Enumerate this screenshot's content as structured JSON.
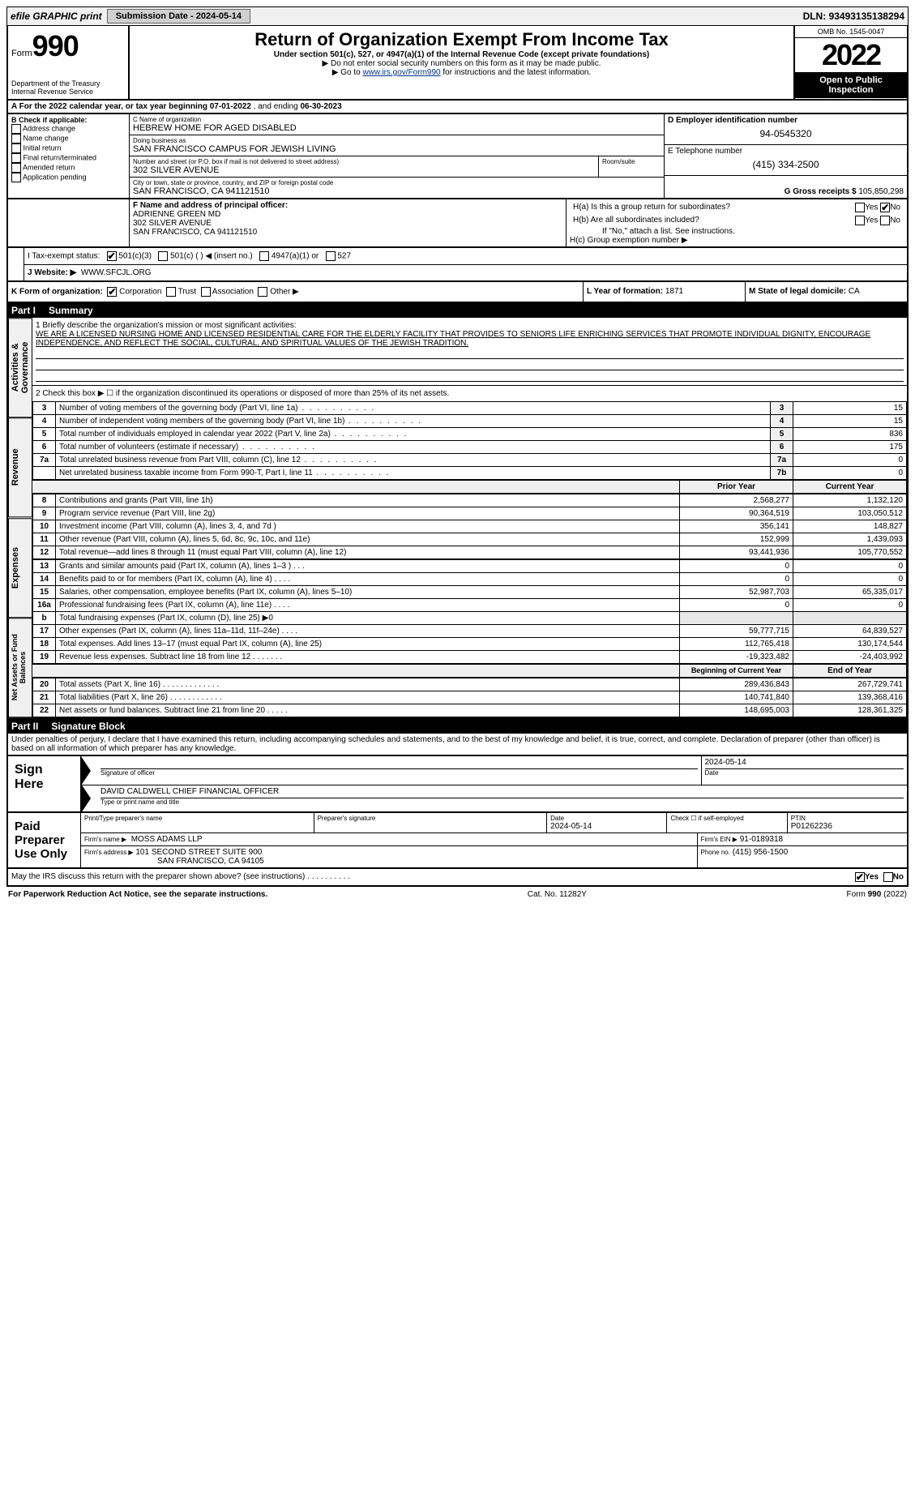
{
  "efile": {
    "label": "efile GRAPHIC print",
    "submission_label": "Submission Date - ",
    "submission_date": "2024-05-14",
    "dln_label": "DLN: ",
    "dln": "93493135138294"
  },
  "header": {
    "form_word": "Form",
    "form_num": "990",
    "title": "Return of Organization Exempt From Income Tax",
    "subtitle": "Under section 501(c), 527, or 4947(a)(1) of the Internal Revenue Code (except private foundations)",
    "note1": "▶ Do not enter social security numbers on this form as it may be made public.",
    "note2_pre": "▶ Go to ",
    "note2_link": "www.irs.gov/Form990",
    "note2_post": " for instructions and the latest information.",
    "dept": "Department of the Treasury\nInternal Revenue Service",
    "omb": "OMB No. 1545-0047",
    "year": "2022",
    "open": "Open to Public Inspection"
  },
  "row_a": {
    "text_pre": "A For the 2022 calendar year, or tax year beginning ",
    "begin": "07-01-2022",
    "mid": " , and ending ",
    "end": "06-30-2023"
  },
  "col_b": {
    "hdr": "B Check if applicable:",
    "items": [
      "Address change",
      "Name change",
      "Initial return",
      "Final return/terminated",
      "Amended return",
      "Application pending"
    ]
  },
  "c": {
    "lbl": "C Name of organization",
    "name": "HEBREW HOME FOR AGED DISABLED",
    "dba_lbl": "Doing business as",
    "dba": "SAN FRANCISCO CAMPUS FOR JEWISH LIVING",
    "addr_lbl": "Number and street (or P.O. box if mail is not delivered to street address)",
    "room_lbl": "Room/suite",
    "addr": "302 SILVER AVENUE",
    "city_lbl": "City or town, state or province, country, and ZIP or foreign postal code",
    "city": "SAN FRANCISCO, CA  941121510"
  },
  "d": {
    "lbl": "D Employer identification number",
    "val": "94-0545320"
  },
  "e": {
    "lbl": "E Telephone number",
    "val": "(415) 334-2500"
  },
  "g": {
    "lbl": "G Gross receipts $",
    "val": "105,850,298"
  },
  "f": {
    "lbl": "F Name and address of principal officer:",
    "name": "ADRIENNE GREEN MD",
    "addr1": "302 SILVER AVENUE",
    "addr2": "SAN FRANCISCO, CA  941121510"
  },
  "h": {
    "a_lbl": "H(a)  Is this a group return for subordinates?",
    "a_yes": "Yes",
    "a_no": "No",
    "b_lbl": "H(b)  Are all subordinates included?",
    "b_yes": "Yes",
    "b_no": "No",
    "b_note": "If \"No,\" attach a list. See instructions.",
    "c_lbl": "H(c)  Group exemption number ▶"
  },
  "i": {
    "lbl": "I  Tax-exempt status:",
    "opts": [
      "501(c)(3)",
      "501(c) (  ) ◀ (insert no.)",
      "4947(a)(1) or",
      "527"
    ]
  },
  "j": {
    "lbl": "J  Website: ▶",
    "val": "WWW.SFCJL.ORG"
  },
  "k": {
    "lbl": "K Form of organization:",
    "opts": [
      "Corporation",
      "Trust",
      "Association",
      "Other ▶"
    ]
  },
  "l": {
    "lbl": "L Year of formation:",
    "val": "1871"
  },
  "m": {
    "lbl": "M State of legal domicile:",
    "val": "CA"
  },
  "part1": {
    "num": "Part I",
    "title": "Summary"
  },
  "summary": {
    "line1_lbl": "1  Briefly describe the organization's mission or most significant activities:",
    "line1_val": "WE ARE A LICENSED NURSING HOME AND LICENSED RESIDENTIAL CARE FOR THE ELDERLY FACILITY THAT PROVIDES TO SENIORS LIFE ENRICHING SERVICES THAT PROMOTE INDIVIDUAL DIGNITY, ENCOURAGE INDEPENDENCE, AND REFLECT THE SOCIAL, CULTURAL, AND SPIRITUAL VALUES OF THE JEWISH TRADITION.",
    "line2": "2  Check this box ▶ ☐ if the organization discontinued its operations or disposed of more than 25% of its net assets.",
    "tab_governance": "Activities & Governance",
    "tab_revenue": "Revenue",
    "tab_expenses": "Expenses",
    "tab_netassets": "Net Assets or Fund Balances",
    "rows_single": [
      {
        "n": "3",
        "t": "Number of voting members of the governing body (Part VI, line 1a)",
        "box": "3",
        "v": "15"
      },
      {
        "n": "4",
        "t": "Number of independent voting members of the governing body (Part VI, line 1b)",
        "box": "4",
        "v": "15"
      },
      {
        "n": "5",
        "t": "Total number of individuals employed in calendar year 2022 (Part V, line 2a)",
        "box": "5",
        "v": "836"
      },
      {
        "n": "6",
        "t": "Total number of volunteers (estimate if necessary)",
        "box": "6",
        "v": "175"
      },
      {
        "n": "7a",
        "t": "Total unrelated business revenue from Part VIII, column (C), line 12",
        "box": "7a",
        "v": "0"
      },
      {
        "n": "",
        "t": "Net unrelated business taxable income from Form 990-T, Part I, line 11",
        "box": "7b",
        "v": "0"
      }
    ],
    "col_hdr_prior": "Prior Year",
    "col_hdr_current": "Current Year",
    "rows_rev": [
      {
        "n": "8",
        "t": "Contributions and grants (Part VIII, line 1h)",
        "p": "2,568,277",
        "c": "1,132,120"
      },
      {
        "n": "9",
        "t": "Program service revenue (Part VIII, line 2g)",
        "p": "90,364,519",
        "c": "103,050,512"
      },
      {
        "n": "10",
        "t": "Investment income (Part VIII, column (A), lines 3, 4, and 7d )",
        "p": "356,141",
        "c": "148,827"
      },
      {
        "n": "11",
        "t": "Other revenue (Part VIII, column (A), lines 5, 6d, 8c, 9c, 10c, and 11e)",
        "p": "152,999",
        "c": "1,439,093"
      },
      {
        "n": "12",
        "t": "Total revenue—add lines 8 through 11 (must equal Part VIII, column (A), line 12)",
        "p": "93,441,936",
        "c": "105,770,552"
      }
    ],
    "rows_exp": [
      {
        "n": "13",
        "t": "Grants and similar amounts paid (Part IX, column (A), lines 1–3 )   .   .   .",
        "p": "0",
        "c": "0"
      },
      {
        "n": "14",
        "t": "Benefits paid to or for members (Part IX, column (A), line 4)   .   .   .   .",
        "p": "0",
        "c": "0"
      },
      {
        "n": "15",
        "t": "Salaries, other compensation, employee benefits (Part IX, column (A), lines 5–10)",
        "p": "52,987,703",
        "c": "65,335,017"
      },
      {
        "n": "16a",
        "t": "Professional fundraising fees (Part IX, column (A), line 11e)   .   .   .   .",
        "p": "0",
        "c": "0"
      },
      {
        "n": "b",
        "t": "Total fundraising expenses (Part IX, column (D), line 25) ▶0",
        "p": "",
        "c": ""
      },
      {
        "n": "17",
        "t": "Other expenses (Part IX, column (A), lines 11a–11d, 11f–24e)   .   .   .   .",
        "p": "59,777,715",
        "c": "64,839,527"
      },
      {
        "n": "18",
        "t": "Total expenses. Add lines 13–17 (must equal Part IX, column (A), line 25)",
        "p": "112,765,418",
        "c": "130,174,544"
      },
      {
        "n": "19",
        "t": "Revenue less expenses. Subtract line 18 from line 12   .   .   .   .   .   .   .",
        "p": "-19,323,482",
        "c": "-24,403,992"
      }
    ],
    "col_hdr_begin": "Beginning of Current Year",
    "col_hdr_end": "End of Year",
    "rows_net": [
      {
        "n": "20",
        "t": "Total assets (Part X, line 16)   .   .   .   .   .   .   .   .   .   .   .   .   .",
        "p": "289,436,843",
        "c": "267,729,741"
      },
      {
        "n": "21",
        "t": "Total liabilities (Part X, line 26)   .   .   .   .   .   .   .   .   .   .   .   .",
        "p": "140,741,840",
        "c": "139,368,416"
      },
      {
        "n": "22",
        "t": "Net assets or fund balances. Subtract line 21 from line 20   .   .   .   .   .",
        "p": "148,695,003",
        "c": "128,361,325"
      }
    ]
  },
  "part2": {
    "num": "Part II",
    "title": "Signature Block"
  },
  "sig": {
    "perjury": "Under penalties of perjury, I declare that I have examined this return, including accompanying schedules and statements, and to the best of my knowledge and belief, it is true, correct, and complete. Declaration of preparer (other than officer) is based on all information of which preparer has any knowledge.",
    "sign_here": "Sign Here",
    "sig_officer_lbl": "Signature of officer",
    "date_lbl": "Date",
    "date_val": "2024-05-14",
    "name_title": "DAVID CALDWELL  CHIEF FINANCIAL OFFICER",
    "name_lbl": "Type or print name and title",
    "paid": "Paid Preparer Use Only",
    "prep_name_lbl": "Print/Type preparer's name",
    "prep_sig_lbl": "Preparer's signature",
    "prep_date_lbl": "Date",
    "prep_date": "2024-05-14",
    "self_emp": "Check ☐ if self-employed",
    "ptin_lbl": "PTIN",
    "ptin": "P01262236",
    "firm_name_lbl": "Firm's name    ▶",
    "firm_name": "MOSS ADAMS LLP",
    "firm_ein_lbl": "Firm's EIN ▶",
    "firm_ein": "91-0189318",
    "firm_addr_lbl": "Firm's address ▶",
    "firm_addr1": "101 SECOND STREET SUITE 900",
    "firm_addr2": "SAN FRANCISCO, CA  94105",
    "phone_lbl": "Phone no.",
    "phone": "(415) 956-1500",
    "discuss": "May the IRS discuss this return with the preparer shown above? (see instructions)   .   .   .   .   .   .   .   .   .   .",
    "discuss_yes": "Yes",
    "discuss_no": "No"
  },
  "footer": {
    "left": "For Paperwork Reduction Act Notice, see the separate instructions.",
    "mid": "Cat. No. 11282Y",
    "right": "Form 990 (2022)"
  },
  "colors": {
    "black": "#000000",
    "white": "#ffffff",
    "grey": "#f0f0f0",
    "link": "#003399"
  }
}
